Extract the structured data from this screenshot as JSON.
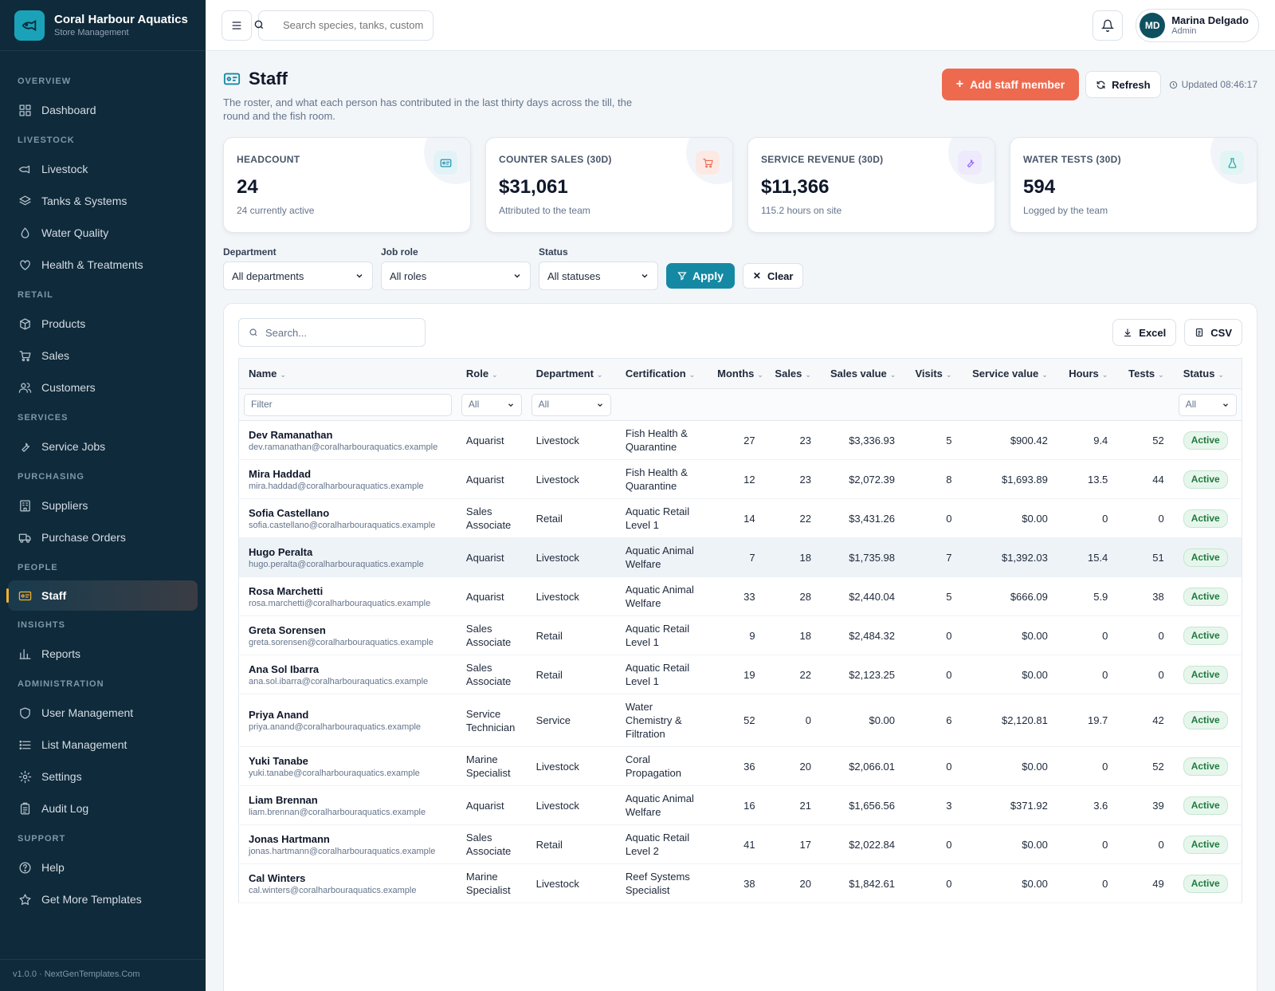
{
  "brand": {
    "title": "Coral Harbour Aquatics",
    "subtitle": "Store Management"
  },
  "sidebar": {
    "sections": [
      {
        "label": "OVERVIEW",
        "items": [
          {
            "label": "Dashboard",
            "icon": "dashboard-icon"
          }
        ]
      },
      {
        "label": "LIVESTOCK",
        "items": [
          {
            "label": "Livestock",
            "icon": "fish-icon"
          },
          {
            "label": "Tanks & Systems",
            "icon": "layers-icon"
          },
          {
            "label": "Water Quality",
            "icon": "droplet-icon"
          },
          {
            "label": "Health & Treatments",
            "icon": "heart-icon"
          }
        ]
      },
      {
        "label": "RETAIL",
        "items": [
          {
            "label": "Products",
            "icon": "box-icon"
          },
          {
            "label": "Sales",
            "icon": "cart-icon"
          },
          {
            "label": "Customers",
            "icon": "users-icon"
          }
        ]
      },
      {
        "label": "SERVICES",
        "items": [
          {
            "label": "Service Jobs",
            "icon": "wrench-icon"
          }
        ]
      },
      {
        "label": "PURCHASING",
        "items": [
          {
            "label": "Suppliers",
            "icon": "building-icon"
          },
          {
            "label": "Purchase Orders",
            "icon": "truck-icon"
          }
        ]
      },
      {
        "label": "PEOPLE",
        "items": [
          {
            "label": "Staff",
            "icon": "id-card-icon",
            "active": true
          }
        ]
      },
      {
        "label": "INSIGHTS",
        "items": [
          {
            "label": "Reports",
            "icon": "bar-chart-icon"
          }
        ]
      },
      {
        "label": "ADMINISTRATION",
        "items": [
          {
            "label": "User Management",
            "icon": "shield-icon"
          },
          {
            "label": "List Management",
            "icon": "list-icon"
          },
          {
            "label": "Settings",
            "icon": "gear-icon"
          },
          {
            "label": "Audit Log",
            "icon": "clipboard-icon"
          }
        ]
      },
      {
        "label": "SUPPORT",
        "items": [
          {
            "label": "Help",
            "icon": "help-icon"
          },
          {
            "label": "Get More Templates",
            "icon": "star-icon"
          }
        ]
      }
    ],
    "footer": "v1.0.0 · NextGenTemplates.Com"
  },
  "topbar": {
    "search_placeholder": "Search species, tanks, customers...",
    "user": {
      "initials": "MD",
      "name": "Marina Delgado",
      "role": "Admin"
    }
  },
  "page": {
    "title": "Staff",
    "description": "The roster, and what each person has contributed in the last thirty days across the till, the round and the fish room.",
    "add_button": "Add staff member",
    "refresh_button": "Refresh",
    "updated": "Updated 08:46:17"
  },
  "stats": [
    {
      "label": "HEADCOUNT",
      "value": "24",
      "sub": "24 currently active",
      "icon": "id-card-icon",
      "color": "#1589a3",
      "bg": "#e2f3f7"
    },
    {
      "label": "COUNTER SALES (30D)",
      "value": "$31,061",
      "sub": "Attributed to the team",
      "icon": "cart-icon",
      "color": "#ee6a4f",
      "bg": "#fde9e4"
    },
    {
      "label": "SERVICE REVENUE (30D)",
      "value": "$11,366",
      "sub": "115.2 hours on site",
      "icon": "wrench-icon",
      "color": "#8b5cf6",
      "bg": "#efe9fd"
    },
    {
      "label": "WATER TESTS (30D)",
      "value": "594",
      "sub": "Logged by the team",
      "icon": "flask-icon",
      "color": "#14a3a0",
      "bg": "#e1f5f4"
    }
  ],
  "filters": {
    "department": {
      "label": "Department",
      "value": "All departments"
    },
    "role": {
      "label": "Job role",
      "value": "All roles"
    },
    "status": {
      "label": "Status",
      "value": "All statuses"
    },
    "apply": "Apply",
    "clear": "Clear"
  },
  "table": {
    "search_placeholder": "Search...",
    "excel": "Excel",
    "csv": "CSV",
    "columns": [
      "Name",
      "Role",
      "Department",
      "Certification",
      "Months",
      "Sales",
      "Sales value",
      "Visits",
      "Service value",
      "Hours",
      "Tests",
      "Status"
    ],
    "filter_placeholder": "Filter",
    "filter_all": "All",
    "rows": [
      {
        "name": "Dev Ramanathan",
        "email": "dev.ramanathan@coralharbouraquatics.example",
        "role": "Aquarist",
        "dept": "Livestock",
        "cert": "Fish Health & Quarantine",
        "months": "27",
        "sales": "23",
        "sales_value": "$3,336.93",
        "visits": "5",
        "service_value": "$900.42",
        "hours": "9.4",
        "tests": "52",
        "status": "Active"
      },
      {
        "name": "Mira Haddad",
        "email": "mira.haddad@coralharbouraquatics.example",
        "role": "Aquarist",
        "dept": "Livestock",
        "cert": "Fish Health & Quarantine",
        "months": "12",
        "sales": "23",
        "sales_value": "$2,072.39",
        "visits": "8",
        "service_value": "$1,693.89",
        "hours": "13.5",
        "tests": "44",
        "status": "Active"
      },
      {
        "name": "Sofia Castellano",
        "email": "sofia.castellano@coralharbouraquatics.example",
        "role": "Sales Associate",
        "dept": "Retail",
        "cert": "Aquatic Retail Level 1",
        "months": "14",
        "sales": "22",
        "sales_value": "$3,431.26",
        "visits": "0",
        "service_value": "$0.00",
        "hours": "0",
        "tests": "0",
        "status": "Active"
      },
      {
        "name": "Hugo Peralta",
        "email": "hugo.peralta@coralharbouraquatics.example",
        "role": "Aquarist",
        "dept": "Livestock",
        "cert": "Aquatic Animal Welfare",
        "months": "7",
        "sales": "18",
        "sales_value": "$1,735.98",
        "visits": "7",
        "service_value": "$1,392.03",
        "hours": "15.4",
        "tests": "51",
        "status": "Active",
        "highlight": true
      },
      {
        "name": "Rosa Marchetti",
        "email": "rosa.marchetti@coralharbouraquatics.example",
        "role": "Aquarist",
        "dept": "Livestock",
        "cert": "Aquatic Animal Welfare",
        "months": "33",
        "sales": "28",
        "sales_value": "$2,440.04",
        "visits": "5",
        "service_value": "$666.09",
        "hours": "5.9",
        "tests": "38",
        "status": "Active"
      },
      {
        "name": "Greta Sorensen",
        "email": "greta.sorensen@coralharbouraquatics.example",
        "role": "Sales Associate",
        "dept": "Retail",
        "cert": "Aquatic Retail Level 1",
        "months": "9",
        "sales": "18",
        "sales_value": "$2,484.32",
        "visits": "0",
        "service_value": "$0.00",
        "hours": "0",
        "tests": "0",
        "status": "Active"
      },
      {
        "name": "Ana Sol Ibarra",
        "email": "ana.sol.ibarra@coralharbouraquatics.example",
        "role": "Sales Associate",
        "dept": "Retail",
        "cert": "Aquatic Retail Level 1",
        "months": "19",
        "sales": "22",
        "sales_value": "$2,123.25",
        "visits": "0",
        "service_value": "$0.00",
        "hours": "0",
        "tests": "0",
        "status": "Active"
      },
      {
        "name": "Priya Anand",
        "email": "priya.anand@coralharbouraquatics.example",
        "role": "Service Technician",
        "dept": "Service",
        "cert": "Water Chemistry & Filtration",
        "months": "52",
        "sales": "0",
        "sales_value": "$0.00",
        "visits": "6",
        "service_value": "$2,120.81",
        "hours": "19.7",
        "tests": "42",
        "status": "Active"
      },
      {
        "name": "Yuki Tanabe",
        "email": "yuki.tanabe@coralharbouraquatics.example",
        "role": "Marine Specialist",
        "dept": "Livestock",
        "cert": "Coral Propagation",
        "months": "36",
        "sales": "20",
        "sales_value": "$2,066.01",
        "visits": "0",
        "service_value": "$0.00",
        "hours": "0",
        "tests": "52",
        "status": "Active"
      },
      {
        "name": "Liam Brennan",
        "email": "liam.brennan@coralharbouraquatics.example",
        "role": "Aquarist",
        "dept": "Livestock",
        "cert": "Aquatic Animal Welfare",
        "months": "16",
        "sales": "21",
        "sales_value": "$1,656.56",
        "visits": "3",
        "service_value": "$371.92",
        "hours": "3.6",
        "tests": "39",
        "status": "Active"
      },
      {
        "name": "Jonas Hartmann",
        "email": "jonas.hartmann@coralharbouraquatics.example",
        "role": "Sales Associate",
        "dept": "Retail",
        "cert": "Aquatic Retail Level 2",
        "months": "41",
        "sales": "17",
        "sales_value": "$2,022.84",
        "visits": "0",
        "service_value": "$0.00",
        "hours": "0",
        "tests": "0",
        "status": "Active"
      },
      {
        "name": "Cal Winters",
        "email": "cal.winters@coralharbouraquatics.example",
        "role": "Marine Specialist",
        "dept": "Livestock",
        "cert": "Reef Systems Specialist",
        "months": "38",
        "sales": "20",
        "sales_value": "$1,842.61",
        "visits": "0",
        "service_value": "$0.00",
        "hours": "0",
        "tests": "49",
        "status": "Active"
      }
    ]
  }
}
